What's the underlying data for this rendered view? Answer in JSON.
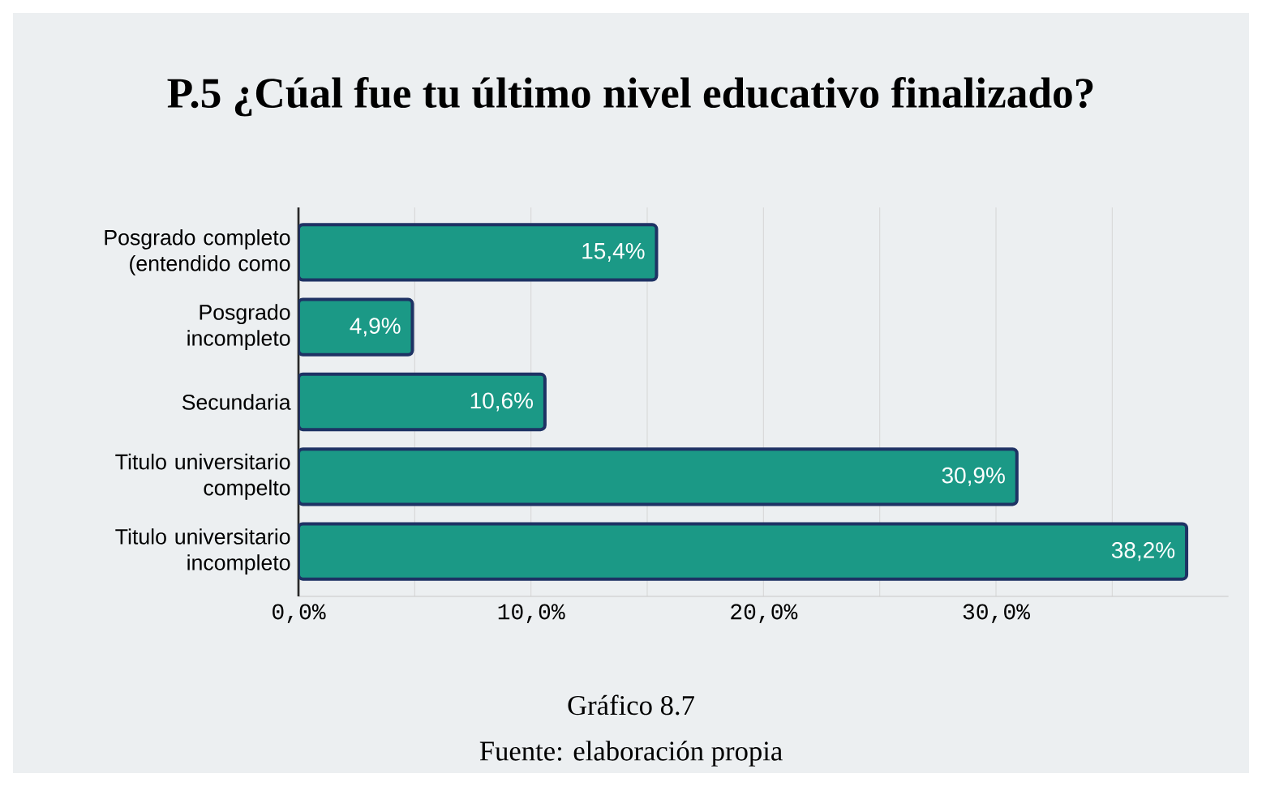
{
  "chart_data": {
    "type": "bar",
    "orientation": "horizontal",
    "title": "P.5 ¿Cúal fue tu último nivel educativo finalizado?",
    "categories": [
      "Posgrado completo (entendido como",
      "Posgrado incompleto",
      "Secundaria",
      "Titulo universitario compelto",
      "Titulo universitario incompleto"
    ],
    "values": [
      15.4,
      4.9,
      10.6,
      30.9,
      38.2
    ],
    "value_labels": [
      "15,4%",
      "4,9%",
      "10,6%",
      "30,9%",
      "38,2%"
    ],
    "color": "#1b9986",
    "xlim": [
      0,
      40
    ],
    "xticks": [
      {
        "value": 0,
        "label": "0,0%"
      },
      {
        "value": 5,
        "label": null
      },
      {
        "value": 10,
        "label": "10,0%"
      },
      {
        "value": 15,
        "label": null
      },
      {
        "value": 20,
        "label": "20,0%"
      },
      {
        "value": 25,
        "label": null
      },
      {
        "value": 30,
        "label": "30,0%"
      },
      {
        "value": 35,
        "label": null
      }
    ],
    "grid": "x",
    "annotations": [
      "Gráfico 8.7",
      "Fuente: elaboración propia"
    ]
  }
}
